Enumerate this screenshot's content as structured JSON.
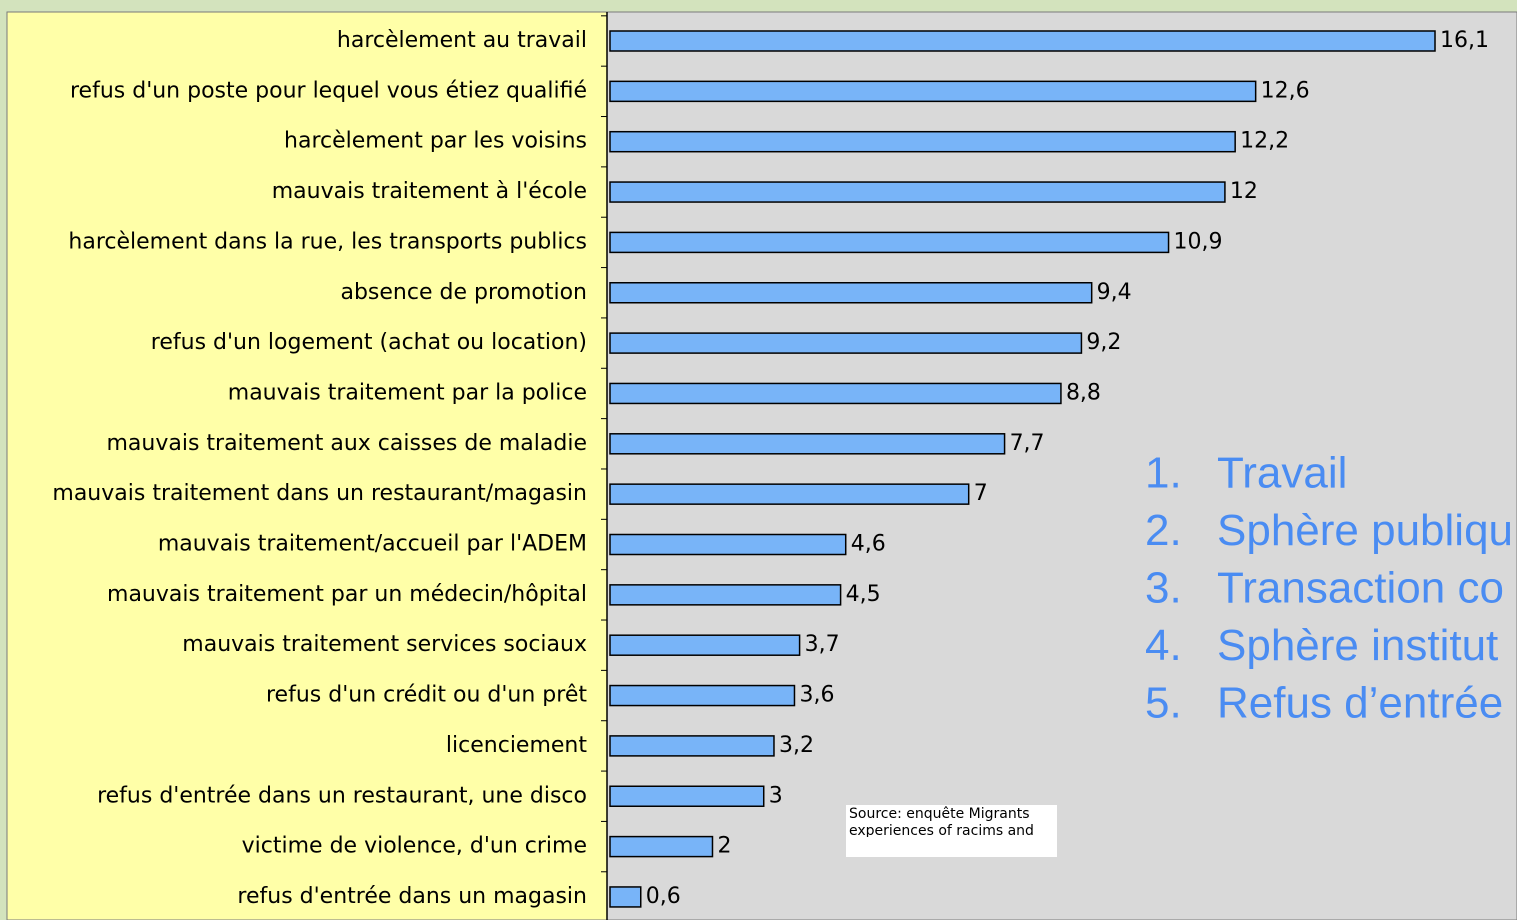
{
  "chart_data": {
    "type": "hbar",
    "categories": [
      "harcèlement au travail",
      "refus d'un poste pour lequel vous étiez qualifié",
      "harcèlement par les voisins",
      "mauvais traitement à l'école",
      "harcèlement dans la rue, les transports publics",
      "absence de promotion",
      "refus d'un logement (achat ou location)",
      "mauvais traitement par la police",
      "mauvais traitement aux caisses de maladie",
      "mauvais traitement dans un restaurant/magasin",
      "mauvais traitement/accueil par l'ADEM",
      "mauvais traitement par un médecin/hôpital",
      "mauvais traitement services sociaux",
      "refus d'un crédit ou d'un prêt",
      "licenciement",
      "refus d'entrée dans un restaurant, une disco",
      "victime de violence, d'un crime",
      "refus d'entrée dans un magasin"
    ],
    "values": [
      16.1,
      12.6,
      12.2,
      12,
      10.9,
      9.4,
      9.2,
      8.8,
      7.7,
      7,
      4.6,
      4.5,
      3.7,
      3.6,
      3.2,
      3,
      2,
      0.6
    ],
    "value_labels": [
      "16,1",
      "12,6",
      "12,2",
      "12",
      "10,9",
      "9,4",
      "9,2",
      "8,8",
      "7,7",
      "7",
      "4,6",
      "4,5",
      "3,7",
      "3,6",
      "3,2",
      "3",
      "2",
      "0,6"
    ],
    "color": "#78b4f8",
    "xlim": [
      0,
      17.7
    ],
    "annotations": [
      {
        "number": "1.",
        "text": "Travail"
      },
      {
        "number": "2.",
        "text": "Sphère publiqu"
      },
      {
        "number": "3.",
        "text": "Transaction co"
      },
      {
        "number": "4.",
        "text": "Sphère institut"
      },
      {
        "number": "5.",
        "text": "Refus d’entrée"
      }
    ],
    "source": [
      "Source: enquête Migrants",
      "experiences of racims and"
    ]
  }
}
